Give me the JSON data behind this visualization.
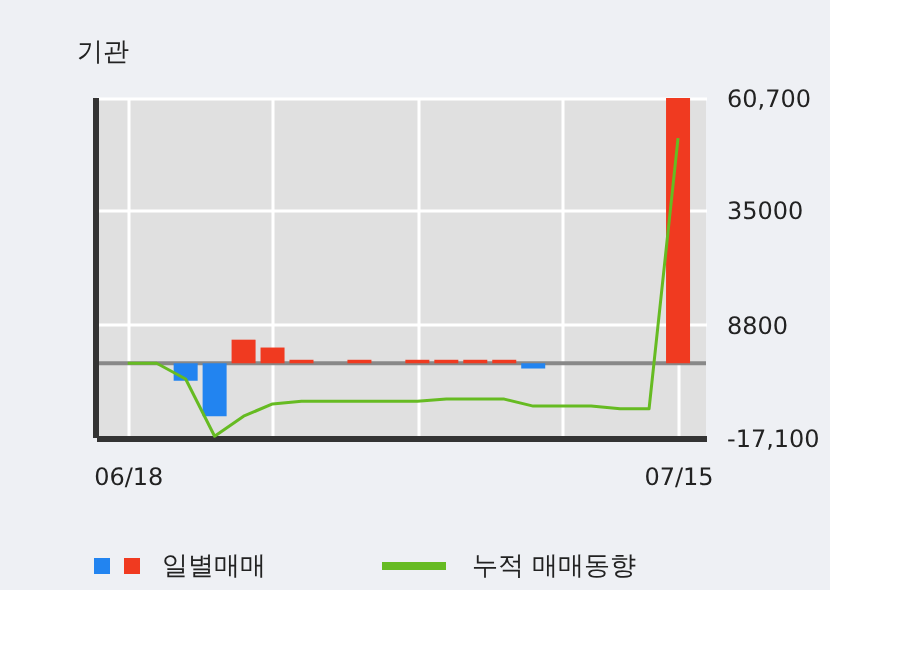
{
  "chart_data": {
    "type": "bar",
    "title": "기관",
    "categories": [
      "06/18",
      null,
      null,
      null,
      null,
      null,
      null,
      null,
      null,
      null,
      null,
      null,
      null,
      null,
      null,
      null,
      null,
      null,
      null,
      "07/15"
    ],
    "series": [
      {
        "name": "일별매매",
        "values": [
          0,
          0,
          -4000,
          -12100,
          5400,
          3600,
          800,
          0,
          800,
          0,
          800,
          800,
          800,
          800,
          -1200,
          0,
          0,
          0,
          0,
          60700
        ],
        "colors": [
          "#f03a20",
          "#f03a20",
          "#2284f0",
          "#2284f0",
          "#f03a20",
          "#f03a20",
          "#f03a20",
          "#f03a20",
          "#f03a20",
          "#f03a20",
          "#f03a20",
          "#f03a20",
          "#f03a20",
          "#f03a20",
          "#2284f0",
          "#f03a20",
          "#f03a20",
          "#f03a20",
          "#f03a20",
          "#f03a20"
        ]
      },
      {
        "name": "누적 매매동향",
        "type": "line",
        "color": "#66bb22",
        "values": [
          0,
          0,
          -3600,
          -16700,
          -12100,
          -9300,
          -8700,
          -8700,
          -8700,
          -8700,
          -8700,
          -8200,
          -8200,
          -8200,
          -9800,
          -9800,
          -9800,
          -10400,
          -10400,
          51500
        ]
      }
    ],
    "ylim": [
      -17100,
      60700
    ],
    "yticks": [
      {
        "value": 60700,
        "label": "60,700"
      },
      35000,
      8800,
      {
        "value": -17100,
        "label": "-17,100"
      }
    ],
    "ref_lines": [
      {
        "axis": "y",
        "value": 0,
        "color": "#888888"
      }
    ],
    "grid": true,
    "legend": "bottom"
  }
}
